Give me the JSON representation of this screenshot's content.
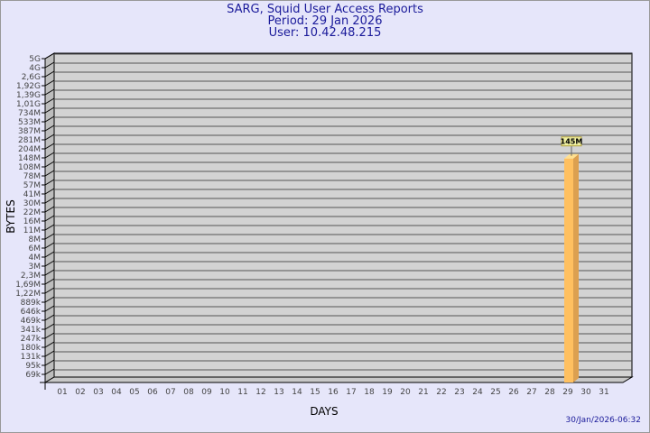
{
  "chart_data": {
    "type": "bar",
    "title": "SARG, Squid User Access Reports",
    "subtitle_period": "Period: 29 Jan 2026",
    "subtitle_user": "User: 10.42.48.215",
    "xlabel": "DAYS",
    "ylabel": "BYTES",
    "y_scale": "log",
    "ylim": [
      69000,
      5000000000
    ],
    "grid": true,
    "y_tick_labels": [
      "5G",
      "4G",
      "2,6G",
      "1,92G",
      "1,39G",
      "1,01G",
      "734M",
      "533M",
      "387M",
      "281M",
      "204M",
      "148M",
      "108M",
      "78M",
      "57M",
      "41M",
      "30M",
      "22M",
      "16M",
      "11M",
      "8M",
      "6M",
      "4M",
      "3M",
      "2,3M",
      "1,69M",
      "1,22M",
      "889k",
      "646k",
      "469k",
      "341k",
      "247k",
      "180k",
      "131k",
      "95k",
      "69k"
    ],
    "categories": [
      "01",
      "02",
      "03",
      "04",
      "05",
      "06",
      "07",
      "08",
      "09",
      "10",
      "11",
      "12",
      "13",
      "14",
      "15",
      "16",
      "17",
      "18",
      "19",
      "20",
      "21",
      "22",
      "23",
      "24",
      "25",
      "26",
      "27",
      "28",
      "29",
      "30",
      "31"
    ],
    "series": [
      {
        "values": [
          null,
          null,
          null,
          null,
          null,
          null,
          null,
          null,
          null,
          null,
          null,
          null,
          null,
          null,
          null,
          null,
          null,
          null,
          null,
          null,
          null,
          null,
          null,
          null,
          null,
          null,
          null,
          null,
          145000000,
          null,
          null
        ],
        "data_labels": {
          "29": "145M"
        }
      }
    ],
    "colors": {
      "bar_front": "#ffc060",
      "bar_side": "#dca050",
      "bar_top": "#ffe090",
      "plot_bg": "#d3d3d3",
      "grid": "#555555",
      "text": "#1a1a9a",
      "label_bg": "#f0f0a0"
    }
  },
  "footer": {
    "timestamp": "30/Jan/2026-06:32"
  }
}
